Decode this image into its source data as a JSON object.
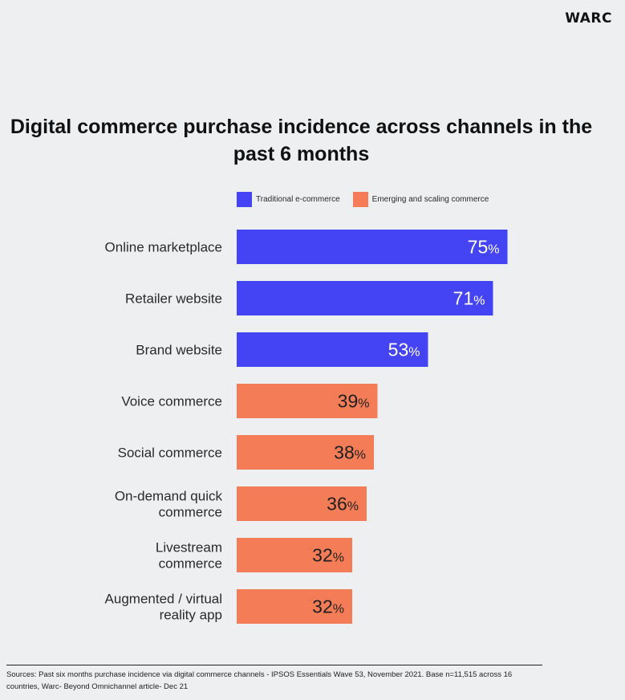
{
  "brand": {
    "logo_text": "WARC"
  },
  "chart_data": {
    "type": "bar",
    "orientation": "horizontal",
    "title": "Digital commerce purchase incidence across channels in the past 6 months",
    "xlabel": "",
    "ylabel": "",
    "xlim": [
      0,
      100
    ],
    "grid": false,
    "legend_position": "top",
    "value_suffix": "%",
    "legend": [
      {
        "name": "Traditional e-commerce",
        "color": "#4444f5"
      },
      {
        "name": "Emerging and scaling commerce",
        "color": "#f47d57"
      }
    ],
    "categories": [
      [
        "Online marketplace"
      ],
      [
        "Retailer website"
      ],
      [
        "Brand website"
      ],
      [
        "Voice commerce"
      ],
      [
        "Social commerce"
      ],
      [
        "On-demand quick",
        "commerce"
      ],
      [
        "Livestream",
        "commerce"
      ],
      [
        "Augmented / virtual",
        "reality app"
      ]
    ],
    "values": [
      75,
      71,
      53,
      39,
      38,
      36,
      32,
      32
    ],
    "groups": [
      "Traditional e-commerce",
      "Traditional e-commerce",
      "Traditional e-commerce",
      "Emerging and scaling commerce",
      "Emerging and scaling commerce",
      "Emerging and scaling commerce",
      "Emerging and scaling commerce",
      "Emerging and scaling commerce"
    ],
    "label_colors": {
      "Traditional e-commerce": "#ffffff",
      "Emerging and scaling commerce": "#1f1f1f"
    }
  },
  "footer": {
    "sources": "Sources: Past six months purchase incidence via digital commerce channels - IPSOS Essentials Wave 53, November 2021. Base n=11,515 across 16 countries, Warc- Beyond Omnichannel article- Dec 21"
  }
}
